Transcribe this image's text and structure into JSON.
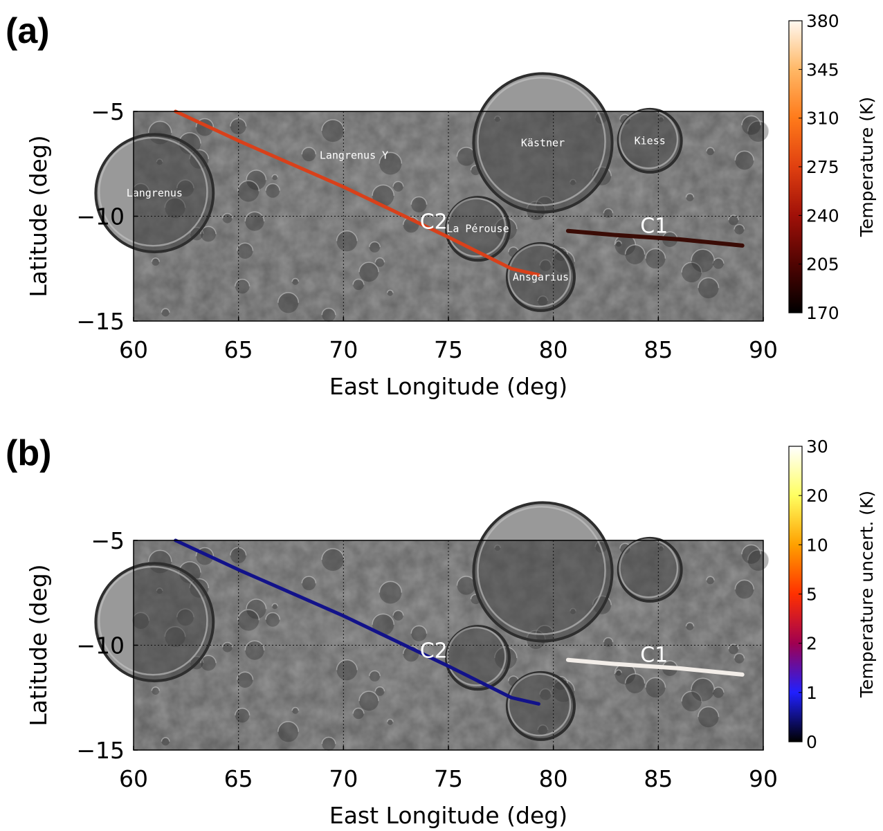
{
  "colors": {
    "map_base": "#5e5e5e",
    "crater_rim_light": "#c8c8c8",
    "crater_shadow": "#2e2e2e",
    "track_temperature": "#d9401a",
    "track_c1_temperature": "#3a0c06",
    "track_uncertainty": "#12128a",
    "track_c1_uncertainty": "#f3eee9"
  },
  "panels": [
    {
      "label": "(a)",
      "xlabel": "East Longitude (deg)",
      "ylabel": "Latitude (deg)",
      "colorbar_title": "Temperature (K)",
      "colorbar_ticks": [
        "380",
        "345",
        "310",
        "275",
        "240",
        "205",
        "170"
      ],
      "colorbar_colors": [
        "#fff8f0",
        "#ffb866",
        "#ff7a1a",
        "#e04010",
        "#a01008",
        "#500402",
        "#000000"
      ],
      "feature_labels": [
        "Langrenus Y",
        "Langrenus",
        "Kästner",
        "Kiess",
        "La Pérouse",
        "Ansgarius"
      ],
      "track_labels": [
        "C2",
        "C1"
      ]
    },
    {
      "label": "(b)",
      "xlabel": "East Longitude (deg)",
      "ylabel": "Latitude (deg)",
      "colorbar_title": "Temperature uncert. (K)",
      "colorbar_ticks": [
        "30",
        "20",
        "10",
        "5",
        "2",
        "1",
        "0"
      ],
      "colorbar_colors": [
        "#ffffff",
        "#ffff60",
        "#ffa000",
        "#ff3000",
        "#a00050",
        "#2020ff",
        "#000000"
      ],
      "feature_labels": [],
      "track_labels": [
        "C2",
        "C1"
      ]
    }
  ],
  "axes": {
    "x_ticks": [
      "60",
      "65",
      "70",
      "75",
      "80",
      "85",
      "90"
    ],
    "y_ticks": [
      "−5",
      "−10",
      "−15"
    ]
  },
  "chart_data": {
    "type": "map",
    "xlim": [
      60,
      90
    ],
    "ylim": [
      -15,
      -5
    ],
    "gridlines": {
      "lon": [
        65,
        70,
        75,
        80,
        85
      ],
      "lat": [
        -10
      ]
    },
    "features": [
      {
        "name": "Langrenus",
        "lon": 61.0,
        "lat": -8.9,
        "r_deg": 2.8
      },
      {
        "name": "Langrenus Y",
        "lon": 70.5,
        "lat": -7.1,
        "r_deg": 0
      },
      {
        "name": "Kästner",
        "lon": 79.5,
        "lat": -6.5,
        "r_deg": 3.3
      },
      {
        "name": "Kiess",
        "lon": 84.6,
        "lat": -6.4,
        "r_deg": 1.5
      },
      {
        "name": "La Pérouse",
        "lon": 76.4,
        "lat": -10.6,
        "r_deg": 1.5
      },
      {
        "name": "Ansgarius",
        "lon": 79.4,
        "lat": -12.9,
        "r_deg": 1.6
      }
    ],
    "tracks": [
      {
        "name": "C2",
        "lon": [
          62.0,
          65.0,
          70.0,
          75.0,
          78.0,
          79.3
        ],
        "lat": [
          -5.0,
          -6.4,
          -8.6,
          -11.0,
          -12.5,
          -12.8
        ],
        "label_lon": 74.3,
        "label_lat": -10.2
      },
      {
        "name": "C1",
        "lon": [
          80.7,
          83.0,
          86.0,
          89.0
        ],
        "lat": [
          -10.7,
          -10.9,
          -11.1,
          -11.4
        ],
        "label_lon": 84.8,
        "label_lat": -10.4
      }
    ]
  }
}
